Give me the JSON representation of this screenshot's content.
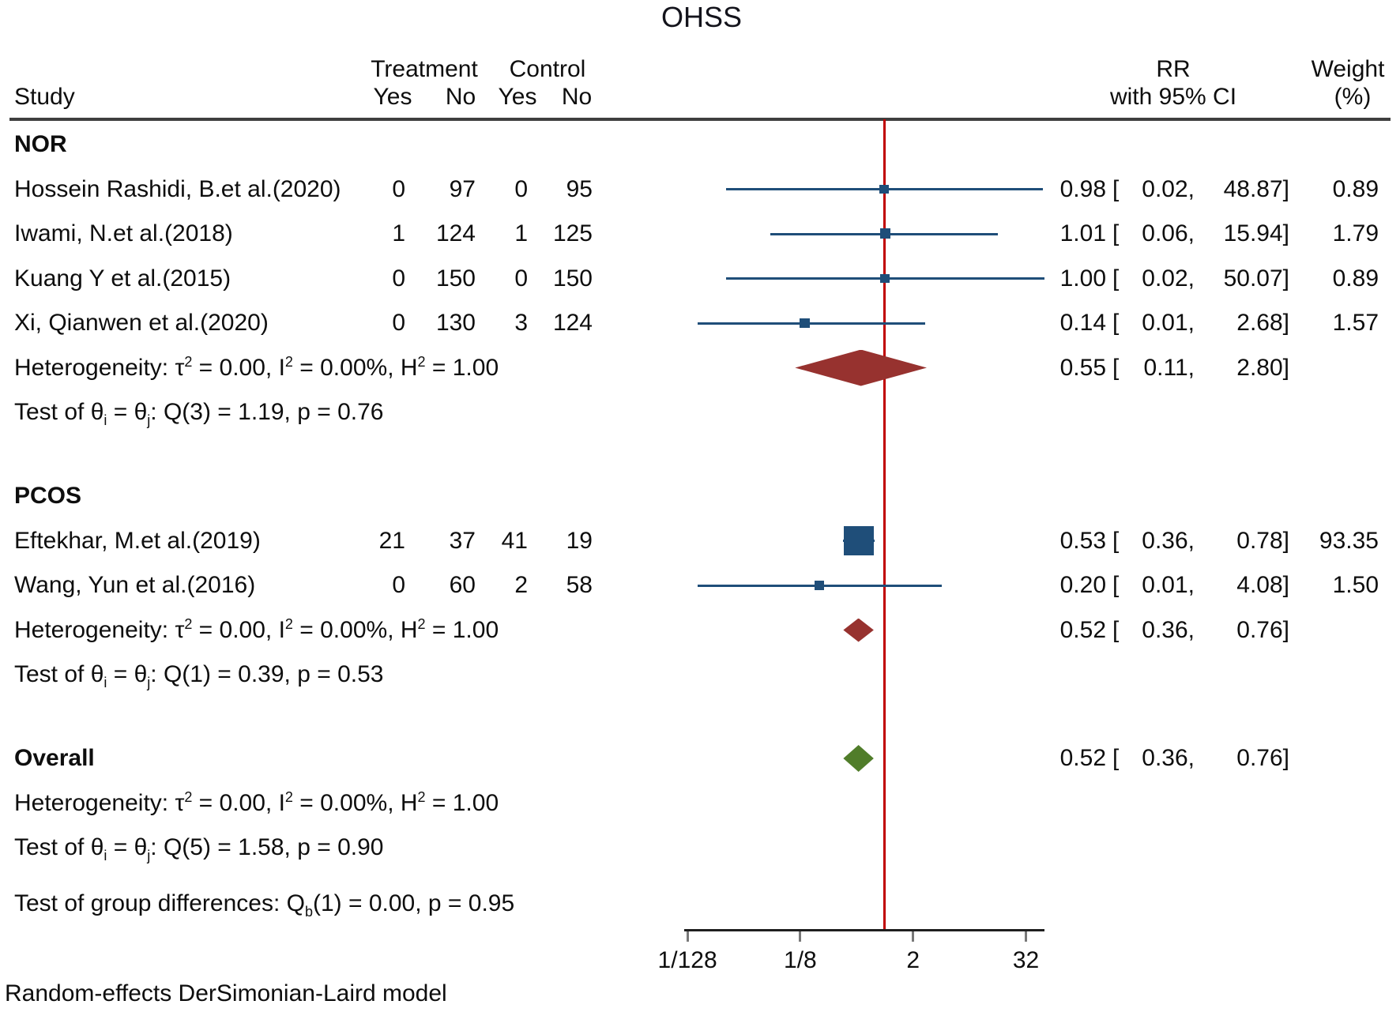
{
  "title": "OHSS",
  "header": {
    "study": "Study",
    "treatment": "Treatment",
    "control": "Control",
    "yes": "Yes",
    "no": "No",
    "rr_line1": "RR",
    "rr_line2": "with 95% CI",
    "weight_line1": "Weight",
    "weight_line2": "(%)"
  },
  "footer": "Random-effects DerSimonian-Laird model",
  "colors": {
    "ci_blue": "#1f4e79",
    "subgroup_diamond": "#97322f",
    "overall_diamond": "#507d2a",
    "reference_line": "#c00000",
    "rule": "#3f3f3f"
  },
  "axis": {
    "scale": "log2",
    "ref_value": 1,
    "ticks": [
      {
        "label": "1/128",
        "value": 0.0078125
      },
      {
        "label": "1/8",
        "value": 0.125
      },
      {
        "label": "2",
        "value": 2
      },
      {
        "label": "32",
        "value": 32
      }
    ]
  },
  "chart_data": {
    "type": "forest",
    "title": "OHSS",
    "x_scale": "log2",
    "reference_line": 1,
    "groups": [
      {
        "label": "NOR",
        "studies": [
          {
            "name": "Hossein Rashidi, B.et al.(2020)",
            "t_yes": "0",
            "t_no": "97",
            "c_yes": "0",
            "c_no": "95",
            "rr": "0.98",
            "lo": "0.02",
            "hi": "48.87",
            "weight": "0.89"
          },
          {
            "name": "Iwami, N.et al.(2018)",
            "t_yes": "1",
            "t_no": "124",
            "c_yes": "1",
            "c_no": "125",
            "rr": "1.01",
            "lo": "0.06",
            "hi": "15.94",
            "weight": "1.79"
          },
          {
            "name": "Kuang Y et al.(2015)",
            "t_yes": "0",
            "t_no": "150",
            "c_yes": "0",
            "c_no": "150",
            "rr": "1.00",
            "lo": "0.02",
            "hi": "50.07",
            "weight": "0.89"
          },
          {
            "name": "Xi, Qianwen et al.(2020)",
            "t_yes": "0",
            "t_no": "130",
            "c_yes": "3",
            "c_no": "124",
            "rr": "0.14",
            "lo": "0.01",
            "hi": "2.68",
            "weight": "1.57"
          }
        ],
        "heterogeneity": "Heterogeneity: τ^2^ = 0.00, I^2^ = 0.00%, H^2^ = 1.00",
        "test": "Test of θ~i~ = θ~j~: Q(3) = 1.19, p = 0.76",
        "summary": {
          "rr": "0.55",
          "lo": "0.11",
          "hi": "2.80",
          "color": "maroon",
          "half_h": 23
        }
      },
      {
        "label": "PCOS",
        "studies": [
          {
            "name": "Eftekhar, M.et al.(2019)",
            "t_yes": "21",
            "t_no": "37",
            "c_yes": "41",
            "c_no": "19",
            "rr": "0.53",
            "lo": "0.36",
            "hi": "0.78",
            "weight": "93.35"
          },
          {
            "name": "Wang, Yun et al.(2016)",
            "t_yes": "0",
            "t_no": "60",
            "c_yes": "2",
            "c_no": "58",
            "rr": "0.20",
            "lo": "0.01",
            "hi": "4.08",
            "weight": "1.50"
          }
        ],
        "heterogeneity": "Heterogeneity: τ^2^ = 0.00, I^2^ = 0.00%, H^2^ = 1.00",
        "test": "Test of θ~i~ = θ~j~: Q(1) = 0.39, p = 0.53",
        "summary": {
          "rr": "0.52",
          "lo": "0.36",
          "hi": "0.76",
          "color": "maroon",
          "half_h": 15
        }
      }
    ],
    "overall": {
      "label": "Overall",
      "summary": {
        "rr": "0.52",
        "lo": "0.36",
        "hi": "0.76",
        "color": "green",
        "half_h": 17
      },
      "heterogeneity": "Heterogeneity: τ^2^ = 0.00, I^2^ = 0.00%, H^2^ = 1.00",
      "test": "Test of θ~i~ = θ~j~: Q(5) = 1.58, p = 0.90",
      "group_diff": "Test of group differences: Q~b~(1) = 0.00, p = 0.95"
    }
  }
}
